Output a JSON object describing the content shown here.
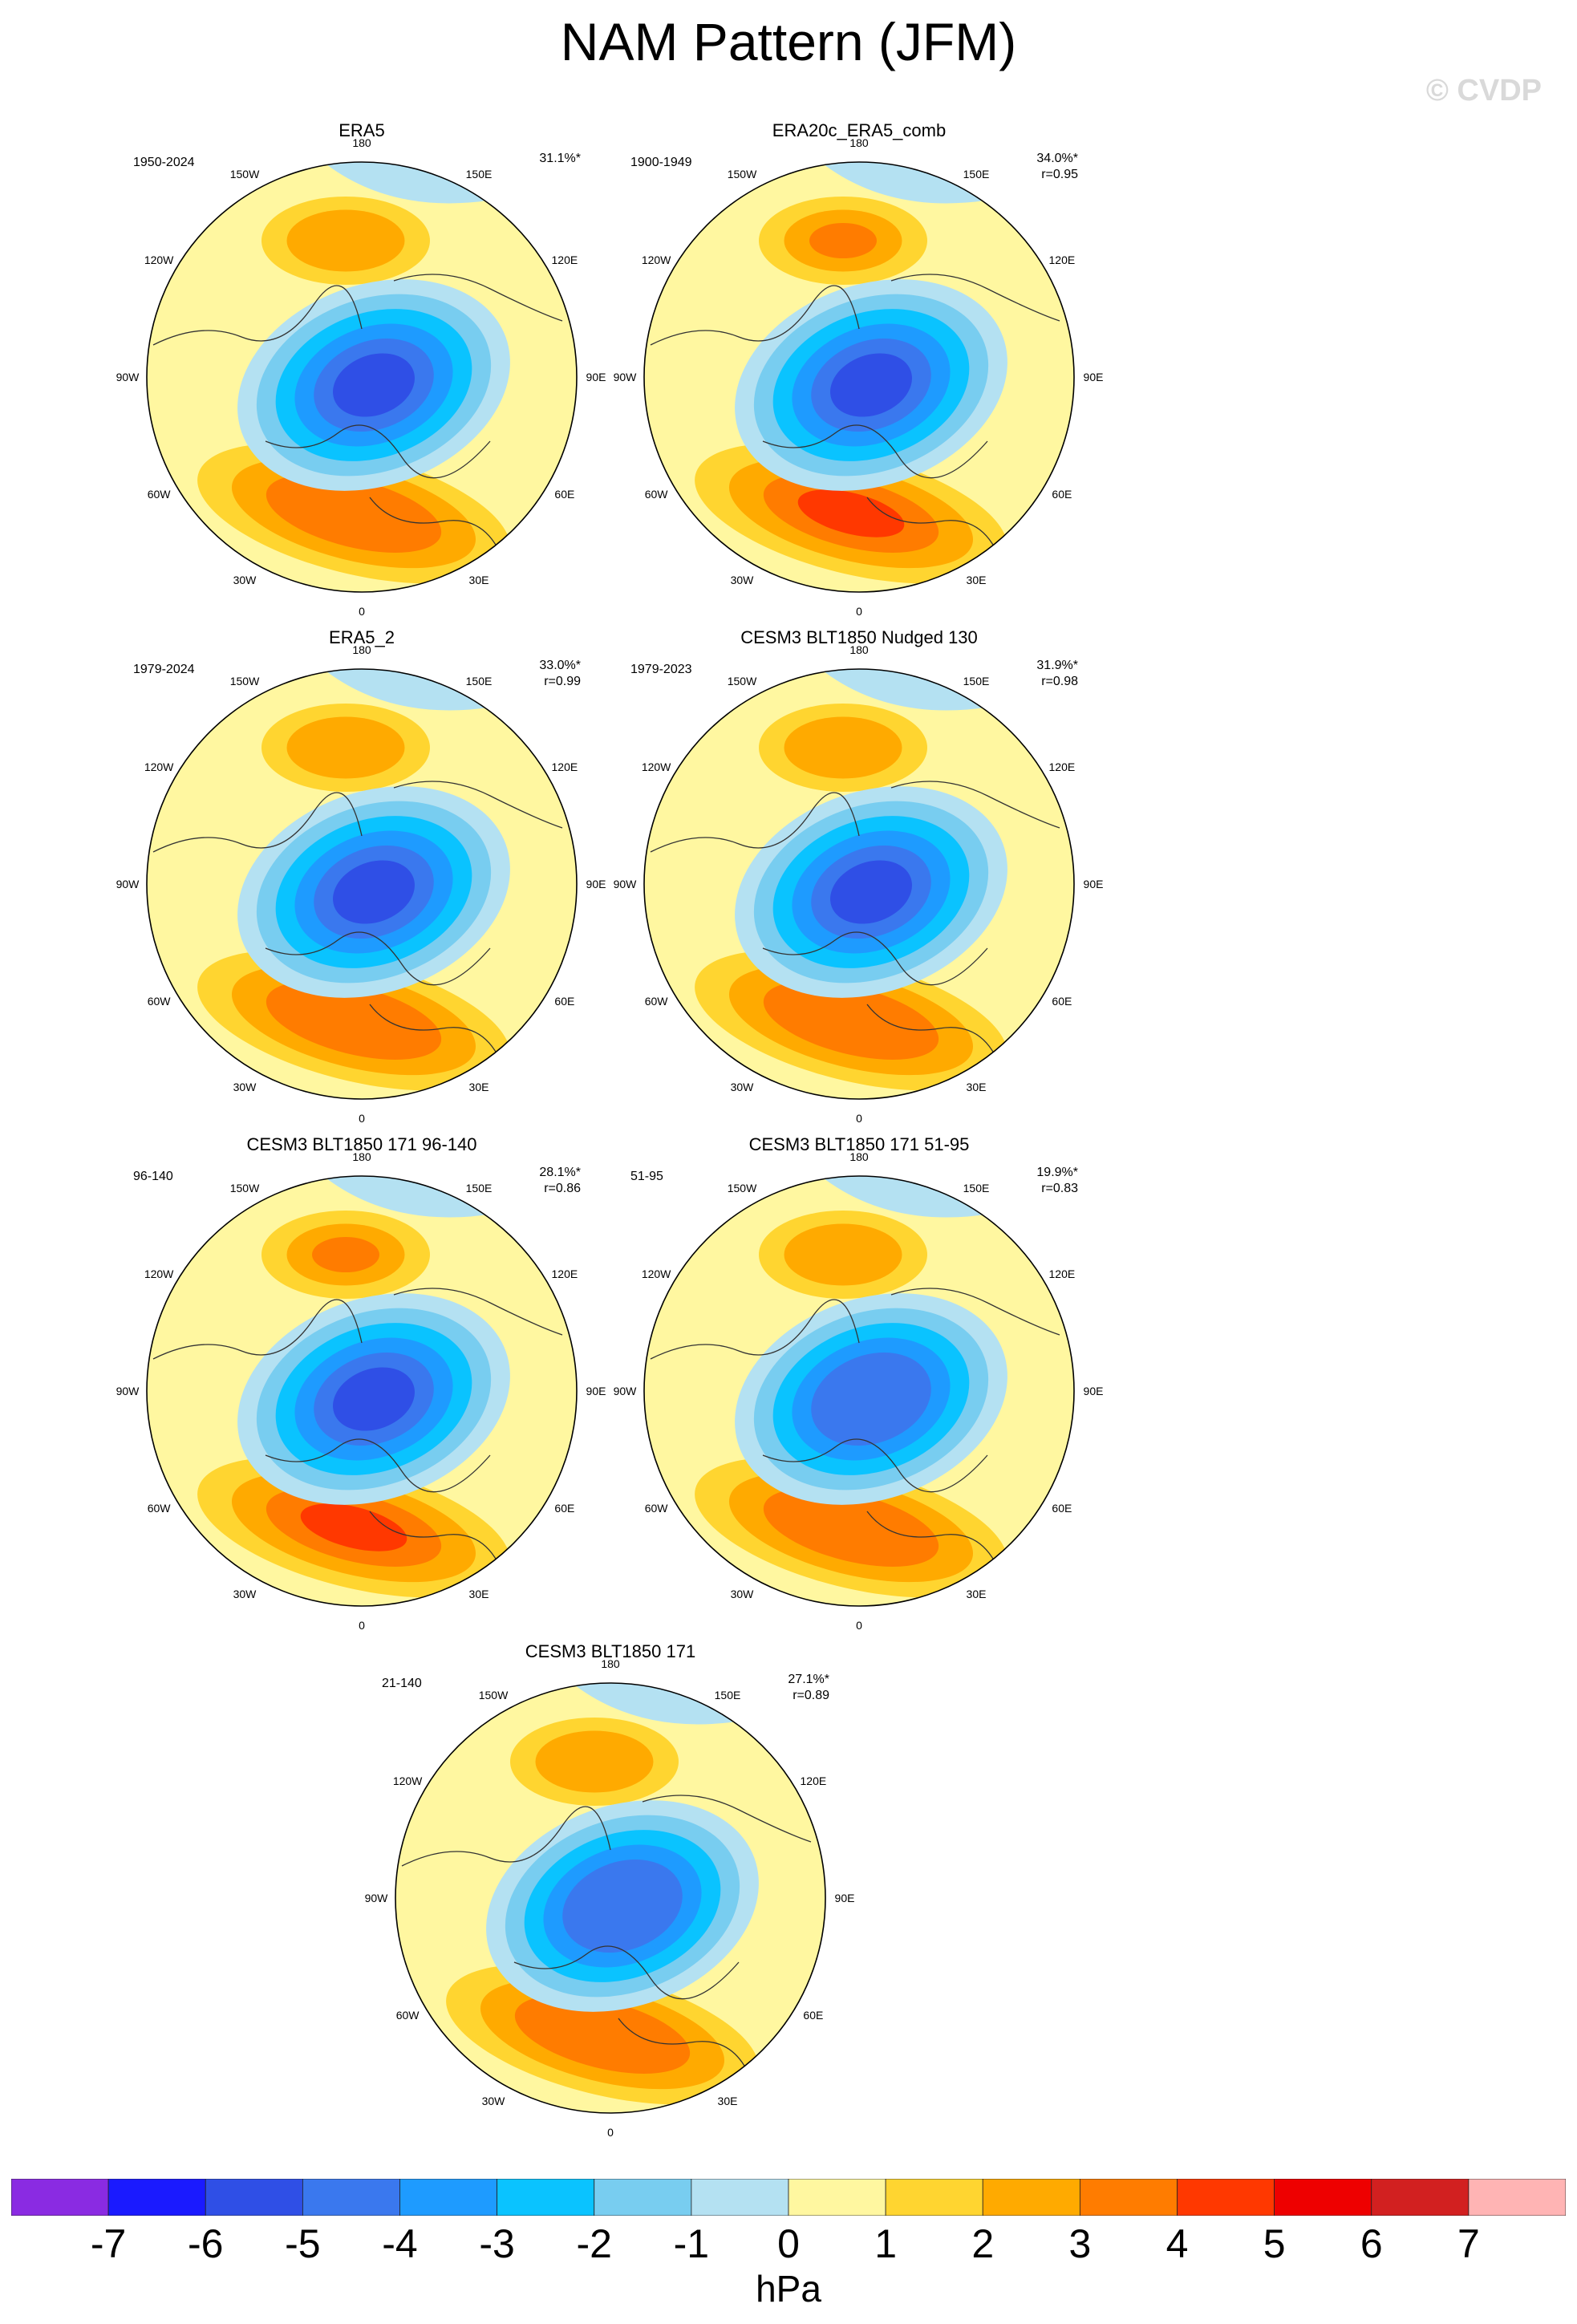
{
  "title": "NAM Pattern (JFM)",
  "copyright": "© CVDP",
  "units": "hPa",
  "colorbar": {
    "ticks": [
      "-7",
      "-6",
      "-5",
      "-4",
      "-3",
      "-2",
      "-1",
      "0",
      "1",
      "2",
      "3",
      "4",
      "5",
      "6",
      "7"
    ],
    "colors": [
      "#8a2be2",
      "#1a1aff",
      "#2f4fe6",
      "#3a78ee",
      "#1e9bff",
      "#0ac3ff",
      "#78cdf0",
      "#b4e1f2",
      "#fff7a0",
      "#ffd530",
      "#ffaa00",
      "#ff7c00",
      "#ff3800",
      "#ee0000",
      "#d22020",
      "#ffb4b4"
    ]
  },
  "chart_data": [
    {
      "type": "polar-map",
      "title": "ERA5",
      "period": "1950-2024",
      "pct": "31.1%*",
      "r": "",
      "min_value": -6,
      "max_value": 3
    },
    {
      "type": "polar-map",
      "title": "ERA20c_ERA5_comb",
      "period": "1900-1949",
      "pct": "34.0%*",
      "r": "r=0.95",
      "min_value": -6,
      "max_value": 4
    },
    {
      "type": "polar-map",
      "title": "ERA5_2",
      "period": "1979-2024",
      "pct": "33.0%*",
      "r": "r=0.99",
      "min_value": -6,
      "max_value": 3
    },
    {
      "type": "polar-map",
      "title": "CESM3 BLT1850 Nudged 130",
      "period": "1979-2023",
      "pct": "31.9%*",
      "r": "r=0.98",
      "min_value": -6,
      "max_value": 3
    },
    {
      "type": "polar-map",
      "title": "CESM3 BLT1850 171 96-140",
      "period": "96-140",
      "pct": "28.1%*",
      "r": "r=0.86",
      "min_value": -6,
      "max_value": 4
    },
    {
      "type": "polar-map",
      "title": "CESM3 BLT1850 171 51-95",
      "period": "51-95",
      "pct": "19.9%*",
      "r": "r=0.83",
      "min_value": -5,
      "max_value": 3
    },
    {
      "type": "polar-map",
      "title": "CESM3 BLT1850 171",
      "period": "21-140",
      "pct": "27.1%*",
      "r": "r=0.89",
      "min_value": -5,
      "max_value": 3
    }
  ],
  "lon_labels": [
    "180",
    "150E",
    "120E",
    "90E",
    "60E",
    "30E",
    "0",
    "30W",
    "60W",
    "90W",
    "120W",
    "150W"
  ]
}
